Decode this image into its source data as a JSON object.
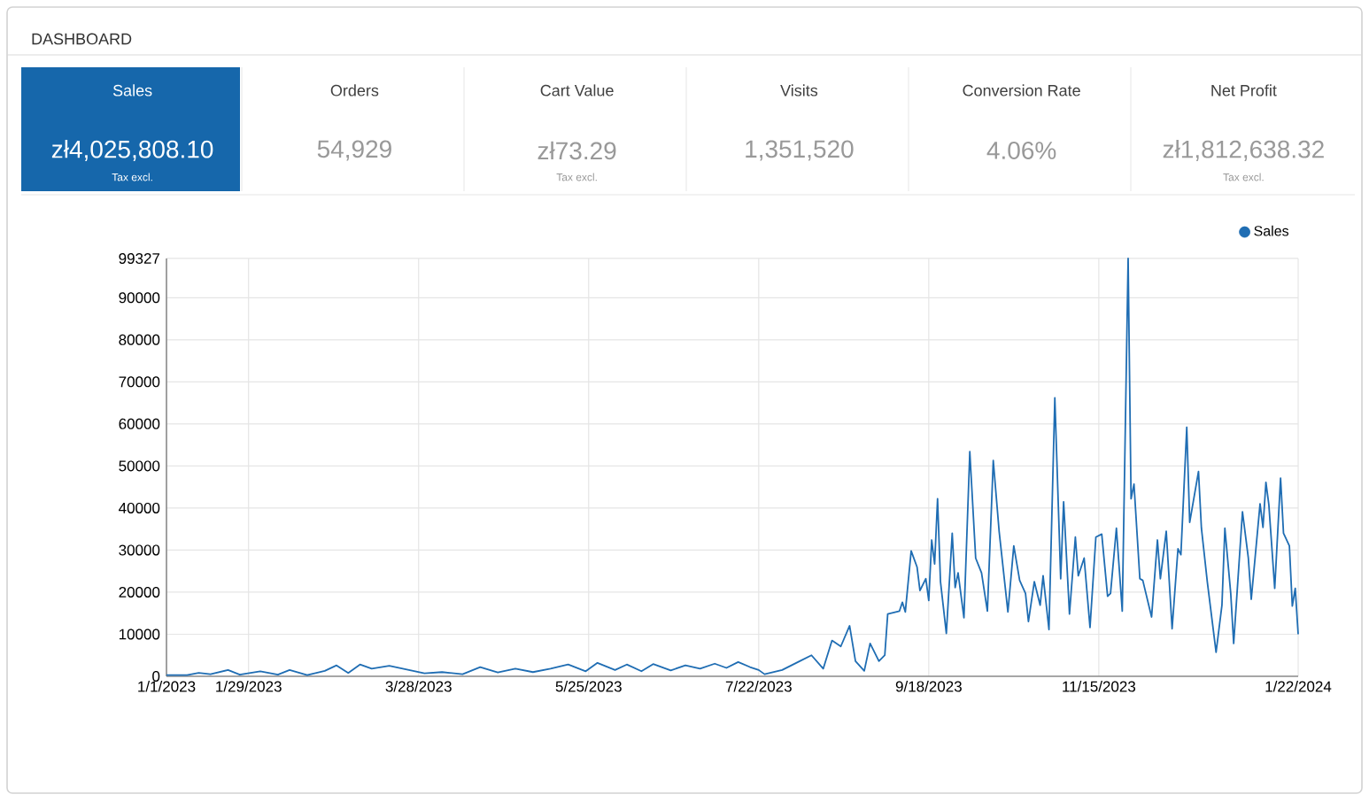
{
  "chart_data": [
    {
      "type": "other",
      "title": "DASHBOARD",
      "categories": [
        "Sales",
        "Orders",
        "Cart Value",
        "Visits",
        "Conversion Rate",
        "Net Profit"
      ],
      "value_labels": [
        "zł4,025,808.10",
        "54,929",
        "zł73.29",
        "1,351,520",
        "4.06%",
        "zł1,812,638.32"
      ],
      "colors": [
        "#1667ab",
        "#ffffff",
        "#ffffff",
        "#ffffff",
        "#ffffff",
        "#ffffff"
      ],
      "annotations": [
        "Tax excl.",
        "Tax excl.",
        "Tax excl."
      ]
    },
    {
      "type": "line",
      "xlim": [
        "2023-01-01",
        "2024-01-22"
      ],
      "xticks": [
        {
          "value": "2023-01-01",
          "label": "1/1/2023"
        },
        {
          "value": "2023-01-29",
          "label": "1/29/2023"
        },
        {
          "value": "2023-03-28",
          "label": "3/28/2023"
        },
        {
          "value": "2023-05-25",
          "label": "5/25/2023"
        },
        {
          "value": "2023-07-22",
          "label": "7/22/2023"
        },
        {
          "value": "2023-09-18",
          "label": "9/18/2023"
        },
        {
          "value": "2023-11-15",
          "label": "11/15/2023"
        },
        {
          "value": "2024-01-22",
          "label": "1/22/2024"
        }
      ],
      "ylim": [
        0,
        99327
      ],
      "yticks": [
        0,
        10000,
        20000,
        30000,
        40000,
        50000,
        60000,
        70000,
        80000,
        90000,
        99327
      ],
      "grid": true,
      "legend": "top right",
      "marker": "none",
      "line_style": "solid",
      "series": [
        {
          "name": "Sales",
          "color": "#1f6db3",
          "x": [
            "2023-01-01",
            "2023-01-08",
            "2023-01-12",
            "2023-01-16",
            "2023-01-22",
            "2023-01-26",
            "2023-02-02",
            "2023-02-08",
            "2023-02-12",
            "2023-02-18",
            "2023-02-24",
            "2023-02-28",
            "2023-03-04",
            "2023-03-08",
            "2023-03-12",
            "2023-03-18",
            "2023-03-24",
            "2023-03-30",
            "2023-04-05",
            "2023-04-12",
            "2023-04-18",
            "2023-04-24",
            "2023-04-30",
            "2023-05-06",
            "2023-05-12",
            "2023-05-18",
            "2023-05-24",
            "2023-05-28",
            "2023-06-03",
            "2023-06-07",
            "2023-06-12",
            "2023-06-16",
            "2023-06-22",
            "2023-06-27",
            "2023-07-02",
            "2023-07-07",
            "2023-07-11",
            "2023-07-15",
            "2023-07-19",
            "2023-07-22",
            "2023-07-24",
            "2023-07-30",
            "2023-08-05",
            "2023-08-09",
            "2023-08-13",
            "2023-08-16",
            "2023-08-19",
            "2023-08-22",
            "2023-08-24",
            "2023-08-27",
            "2023-08-29",
            "2023-09-01",
            "2023-09-03",
            "2023-09-04",
            "2023-09-08",
            "2023-09-09",
            "2023-09-10",
            "2023-09-12",
            "2023-09-14",
            "2023-09-15",
            "2023-09-17",
            "2023-09-18",
            "2023-09-19",
            "2023-09-20",
            "2023-09-21",
            "2023-09-22",
            "2023-09-24",
            "2023-09-26",
            "2023-09-27",
            "2023-09-28",
            "2023-09-30",
            "2023-10-02",
            "2023-10-04",
            "2023-10-06",
            "2023-10-08",
            "2023-10-10",
            "2023-10-12",
            "2023-10-15",
            "2023-10-17",
            "2023-10-19",
            "2023-10-21",
            "2023-10-22",
            "2023-10-24",
            "2023-10-26",
            "2023-10-27",
            "2023-10-29",
            "2023-10-31",
            "2023-11-02",
            "2023-11-03",
            "2023-11-05",
            "2023-11-07",
            "2023-11-08",
            "2023-11-10",
            "2023-11-12",
            "2023-11-14",
            "2023-11-16",
            "2023-11-18",
            "2023-11-19",
            "2023-11-21",
            "2023-11-23",
            "2023-11-25",
            "2023-11-26",
            "2023-11-27",
            "2023-11-29",
            "2023-11-30",
            "2023-12-03",
            "2023-12-05",
            "2023-12-06",
            "2023-12-08",
            "2023-12-10",
            "2023-12-12",
            "2023-12-13",
            "2023-12-15",
            "2023-12-16",
            "2023-12-19",
            "2023-12-20",
            "2023-12-22",
            "2023-12-25",
            "2023-12-27",
            "2023-12-28",
            "2023-12-30",
            "2023-12-31",
            "2024-01-03",
            "2024-01-05",
            "2024-01-06",
            "2024-01-09",
            "2024-01-10",
            "2024-01-11",
            "2024-01-12",
            "2024-01-14",
            "2024-01-16",
            "2024-01-17",
            "2024-01-19",
            "2024-01-20",
            "2024-01-21",
            "2024-01-22"
          ],
          "values": [
            300,
            300,
            800,
            500,
            1500,
            400,
            1200,
            400,
            1500,
            300,
            1300,
            2600,
            800,
            2800,
            1800,
            2500,
            1600,
            700,
            1000,
            500,
            2200,
            900,
            1800,
            1000,
            1800,
            2800,
            1200,
            3200,
            1500,
            2800,
            1200,
            2900,
            1400,
            2600,
            1800,
            3000,
            2000,
            3400,
            2200,
            1500,
            500,
            1500,
            3600,
            5000,
            1800,
            8500,
            7100,
            12000,
            3600,
            1300,
            7800,
            3600,
            5000,
            14800,
            15500,
            17600,
            15300,
            29800,
            26000,
            20400,
            23200,
            18000,
            32400,
            26700,
            42200,
            22500,
            10200,
            34000,
            21100,
            24600,
            13900,
            53400,
            28100,
            24600,
            15500,
            51300,
            34500,
            15300,
            31000,
            22800,
            19700,
            13000,
            22500,
            16900,
            23900,
            11100,
            66200,
            23200,
            41500,
            14800,
            33100,
            23900,
            28100,
            11600,
            33100,
            33800,
            19000,
            19700,
            35200,
            15500,
            99327,
            42200,
            45700,
            23200,
            22800,
            14100,
            32400,
            23200,
            34500,
            11300,
            30300,
            28900,
            59200,
            36600,
            48700,
            35200,
            22500,
            5700,
            16900,
            35200,
            19700,
            7800,
            39100,
            28100,
            18300,
            41000,
            35400,
            46100,
            40800,
            20900,
            47100,
            34000,
            31000,
            16700,
            20900,
            10000
          ]
        }
      ]
    }
  ]
}
